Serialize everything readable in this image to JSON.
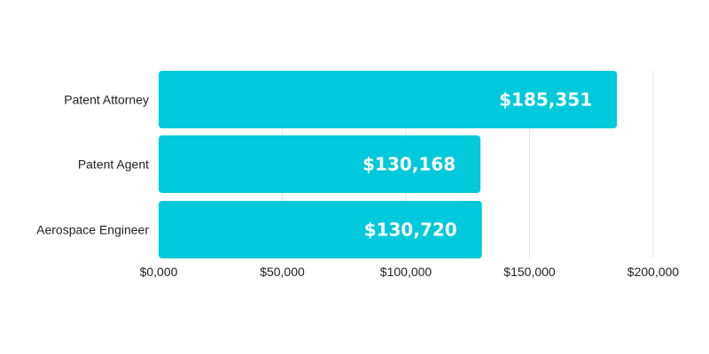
{
  "chart_data": {
    "type": "bar",
    "orientation": "horizontal",
    "categories": [
      "Patent Attorney",
      "Patent Agent",
      "Aerospace Engineer"
    ],
    "values": [
      185351,
      130168,
      130720
    ],
    "value_labels": [
      "$185,351",
      "$130,168",
      "$130,720"
    ],
    "xlim": [
      0,
      200000
    ],
    "x_ticks": [
      0,
      50000,
      100000,
      150000,
      200000
    ],
    "x_tick_labels": [
      "$0,000",
      "$50,000",
      "$100,000",
      "$150,000",
      "$200,000"
    ],
    "grid": "vertical",
    "legend": "none",
    "bar_color": "#00c9db",
    "value_label_color": "#ffffff"
  }
}
